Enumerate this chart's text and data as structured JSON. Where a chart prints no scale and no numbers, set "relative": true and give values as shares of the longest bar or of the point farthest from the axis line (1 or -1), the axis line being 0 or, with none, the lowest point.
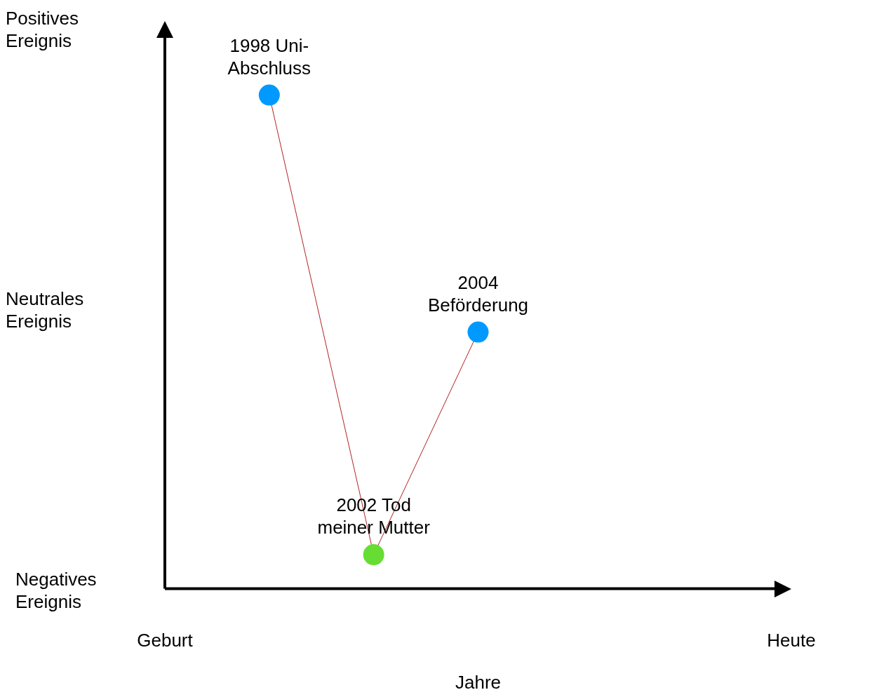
{
  "chart_data": {
    "type": "line",
    "relative": true,
    "xlabel": "Jahre",
    "categories": [
      "Geburt",
      null,
      null,
      null,
      null,
      null,
      "Heute"
    ],
    "series": [
      {
        "color": "#b22222",
        "values": [
          null,
          1,
          0.069,
          0.52,
          null,
          null,
          null
        ],
        "colors": [
          "#0099ff",
          "#0099ff",
          "#66dd33",
          "#0099ff",
          "#0099ff",
          "#0099ff",
          "#0099ff"
        ]
      }
    ],
    "marker": "circle",
    "grid": false,
    "legend": false,
    "annotations": [
      "Positives\nEreignis",
      "Neutrales\nEreignis",
      "Negatives\nEreignis",
      {
        "text": "1998 Uni-\nAbschluss",
        "y": 1
      },
      {
        "text": "2002 Tod\nmeiner Mutter",
        "y": 0.069
      },
      {
        "text": "2004\nBeförderung",
        "y": 0.52
      }
    ]
  }
}
